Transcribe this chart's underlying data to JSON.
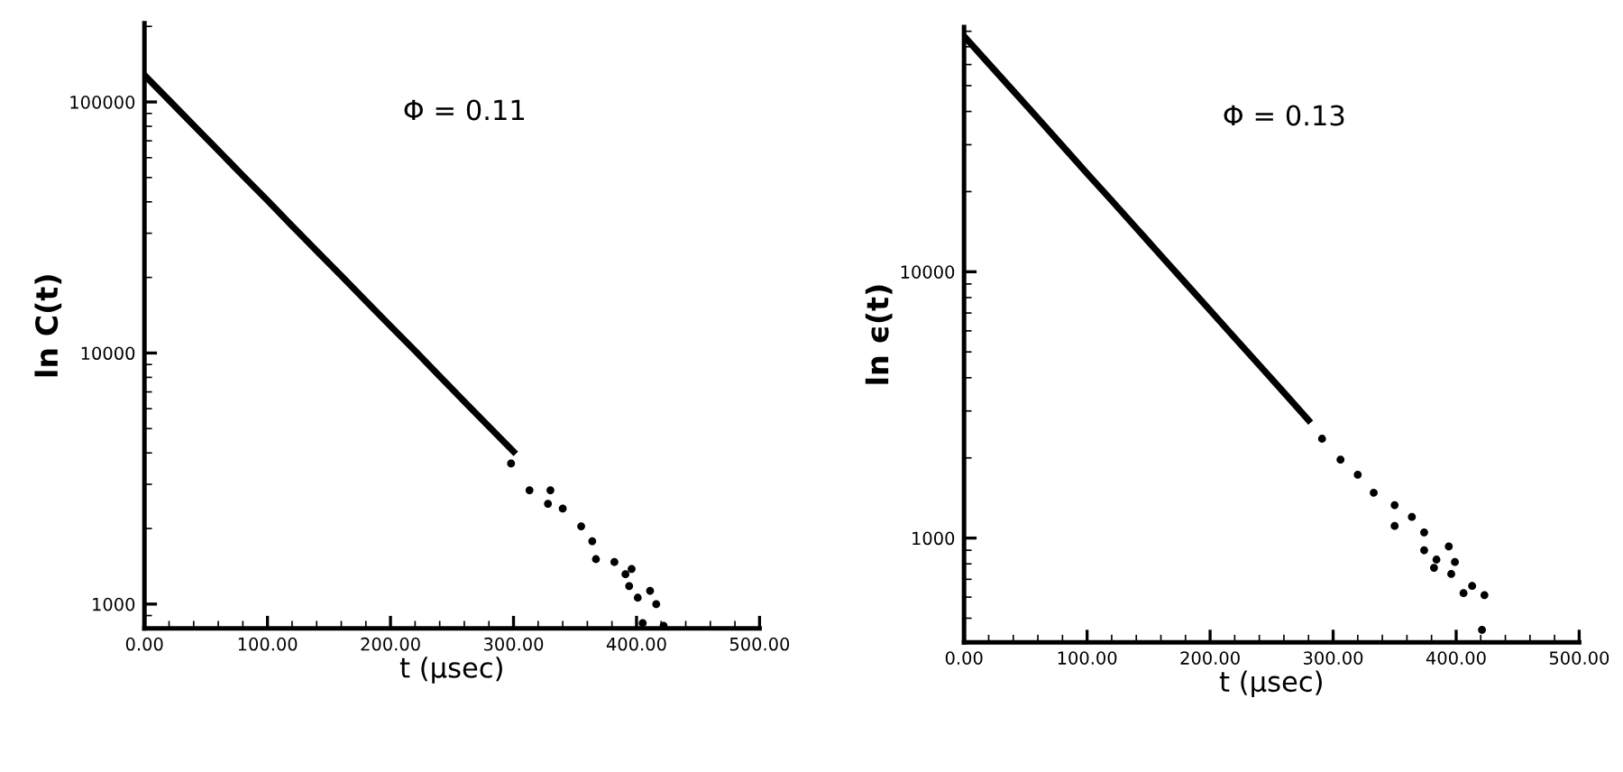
{
  "chart_data": [
    {
      "type": "scatter",
      "xlabel": "t (μsec)",
      "ylabel": "ln C(t)",
      "annotations": [
        "Φ = 0.11"
      ],
      "log": "y",
      "grid": false,
      "xlim": [
        0,
        500
      ],
      "ylim": [
        800,
        206000
      ],
      "xticks": [
        {
          "value": 0,
          "label": "0.00"
        },
        {
          "value": 100,
          "label": "100.00"
        },
        {
          "value": 200,
          "label": "200.00"
        },
        {
          "value": 300,
          "label": "300.00"
        },
        {
          "value": 400,
          "label": "400.00"
        },
        {
          "value": 500,
          "label": "500.00"
        }
      ],
      "yticks": [
        1000,
        10000,
        100000
      ],
      "series": [
        {
          "type": "line",
          "marker": "none",
          "color": "#000000",
          "x": [
            0,
            20,
            40,
            60,
            80,
            100,
            120,
            140,
            160,
            180,
            200,
            220,
            240,
            260,
            280,
            300
          ],
          "values": [
            128000,
            101600,
            80700,
            64100,
            50900,
            40500,
            32100,
            25500,
            20300,
            16100,
            12800,
            10200,
            8070,
            6410,
            5090,
            4050
          ]
        },
        {
          "marker": "circle",
          "color": "#000000",
          "x": [
            298,
            313,
            330,
            328,
            340,
            355,
            364,
            367,
            382,
            391,
            396,
            394,
            401,
            405,
            411,
            416,
            422
          ],
          "values": [
            3630,
            2840,
            2840,
            2510,
            2400,
            2040,
            1780,
            1510,
            1470,
            1315,
            1380,
            1180,
            1060,
            840,
            1130,
            1000,
            820
          ]
        }
      ]
    },
    {
      "type": "scatter",
      "xlabel": "t (μsec)",
      "ylabel": "ln ϵ(t)",
      "annotations": [
        "Φ = 0.13"
      ],
      "log": "y",
      "grid": false,
      "xlim": [
        0,
        500
      ],
      "ylim": [
        406,
        83000
      ],
      "xticks": [
        {
          "value": 0,
          "label": "0.00"
        },
        {
          "value": 100,
          "label": "100.00"
        },
        {
          "value": 200,
          "label": "200.00"
        },
        {
          "value": 300,
          "label": "300.00"
        },
        {
          "value": 400,
          "label": "400.00"
        },
        {
          "value": 500,
          "label": "500.00"
        }
      ],
      "yticks": [
        1000,
        10000
      ],
      "series": [
        {
          "type": "line",
          "marker": "none",
          "color": "#000000",
          "x": [
            0,
            20,
            40,
            60,
            80,
            100,
            120,
            140,
            160,
            180,
            200,
            220,
            240,
            260,
            280
          ],
          "values": [
            76700,
            60500,
            47800,
            37700,
            29700,
            23400,
            18500,
            14600,
            11500,
            9080,
            7160,
            5650,
            4460,
            3520,
            2770
          ]
        },
        {
          "marker": "circle",
          "color": "#000000",
          "x": [
            291,
            306,
            320,
            333,
            350,
            350,
            364,
            374,
            374,
            384,
            394,
            399,
            382,
            396,
            406,
            413,
            423,
            421
          ],
          "values": [
            2360,
            1970,
            1730,
            1480,
            1330,
            1110,
            1200,
            1050,
            900,
            830,
            930,
            813,
            773,
            733,
            621,
            661,
            611,
            452
          ]
        }
      ]
    }
  ]
}
